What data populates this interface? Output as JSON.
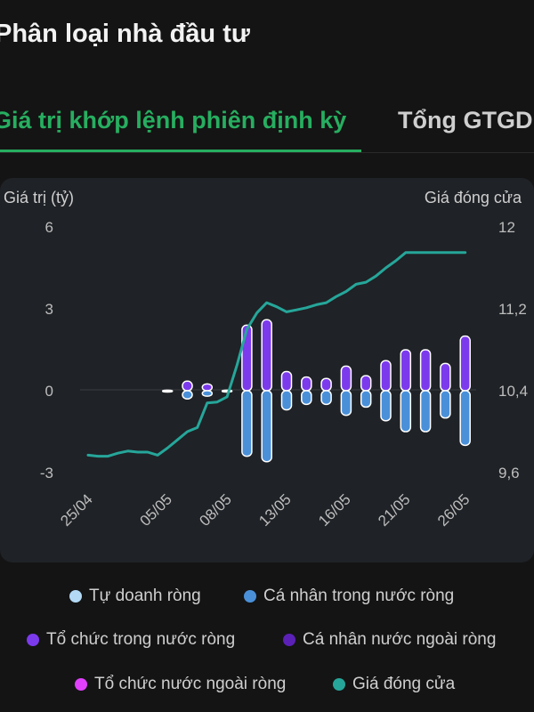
{
  "page": {
    "title": "Phân loại nhà đầu tư"
  },
  "tabs": [
    {
      "label": "Giá trị khớp lệnh phiên định kỳ",
      "active": true
    },
    {
      "label": "Tổng GTGD",
      "active": false
    }
  ],
  "colors": {
    "tab_active": "#27ae60",
    "tu_doanh": "#b3d9f5",
    "ca_nhan_trong_nuoc": "#4a90d9",
    "to_chuc_trong_nuoc": "#7c3aed",
    "ca_nhan_nuoc_ngoai": "#5b21b6",
    "to_chuc_nuoc_ngoai": "#e040fb",
    "gia_dong_cua": "#26a69a"
  },
  "chart_data": {
    "type": "bar",
    "left_axis_label": "Giá trị (tỷ)",
    "right_axis_label": "Giá đóng cửa",
    "left_ticks": [
      "6",
      "3",
      "0",
      "-3"
    ],
    "right_ticks": [
      "12",
      "11,2",
      "10,4",
      "9,6"
    ],
    "ylim_left": [
      -3,
      6
    ],
    "ylim_right": [
      9.6,
      12
    ],
    "x_tick_labels": [
      "25/04",
      "05/05",
      "08/05",
      "13/05",
      "16/05",
      "21/05",
      "26/05"
    ],
    "x_tick_index": [
      0,
      4,
      7,
      10,
      13,
      16,
      19
    ],
    "bars": [
      {
        "index": 4,
        "positive": 0.02,
        "negative": -0.02
      },
      {
        "index": 5,
        "positive": 0.35,
        "negative": -0.3
      },
      {
        "index": 6,
        "positive": 0.25,
        "negative": -0.2
      },
      {
        "index": 7,
        "positive": 0.02,
        "negative": -0.02
      },
      {
        "index": 8,
        "positive": 2.4,
        "negative": -2.4
      },
      {
        "index": 9,
        "positive": 2.6,
        "negative": -2.6
      },
      {
        "index": 10,
        "positive": 0.7,
        "negative": -0.7
      },
      {
        "index": 11,
        "positive": 0.5,
        "negative": -0.5
      },
      {
        "index": 12,
        "positive": 0.45,
        "negative": -0.5
      },
      {
        "index": 13,
        "positive": 0.9,
        "negative": -0.9
      },
      {
        "index": 14,
        "positive": 0.55,
        "negative": -0.6
      },
      {
        "index": 15,
        "positive": 1.1,
        "negative": -1.1
      },
      {
        "index": 16,
        "positive": 1.5,
        "negative": -1.5
      },
      {
        "index": 17,
        "positive": 1.5,
        "negative": -1.5
      },
      {
        "index": 18,
        "positive": 1.0,
        "negative": -1.0
      },
      {
        "index": 19,
        "positive": 2.0,
        "negative": -2.0
      }
    ],
    "price_line": {
      "name": "Giá đóng cửa",
      "points": [
        [
          0,
          9.77
        ],
        [
          0.5,
          9.76
        ],
        [
          1,
          9.76
        ],
        [
          1.5,
          9.79
        ],
        [
          2,
          9.81
        ],
        [
          2.5,
          9.8
        ],
        [
          3,
          9.8
        ],
        [
          3.5,
          9.77
        ],
        [
          4,
          9.84
        ],
        [
          4.5,
          9.92
        ],
        [
          5,
          10.0
        ],
        [
          5.5,
          10.04
        ],
        [
          6,
          10.28
        ],
        [
          6.5,
          10.29
        ],
        [
          7,
          10.34
        ],
        [
          7.5,
          10.65
        ],
        [
          8,
          11.0
        ],
        [
          8.5,
          11.16
        ],
        [
          9,
          11.26
        ],
        [
          9.5,
          11.22
        ],
        [
          10,
          11.17
        ],
        [
          10.5,
          11.19
        ],
        [
          11,
          11.21
        ],
        [
          11.5,
          11.24
        ],
        [
          12,
          11.26
        ],
        [
          12.5,
          11.32
        ],
        [
          13,
          11.37
        ],
        [
          13.5,
          11.44
        ],
        [
          14,
          11.46
        ],
        [
          14.5,
          11.52
        ],
        [
          15,
          11.6
        ],
        [
          15.5,
          11.67
        ],
        [
          16,
          11.75
        ],
        [
          16.5,
          11.75
        ],
        [
          17,
          11.75
        ],
        [
          17.5,
          11.75
        ],
        [
          18,
          11.75
        ],
        [
          18.5,
          11.75
        ],
        [
          19,
          11.75
        ]
      ]
    },
    "legend": [
      {
        "label": "Tự doanh ròng",
        "color": "#b3d9f5"
      },
      {
        "label": "Cá nhân trong nước ròng",
        "color": "#4a90d9"
      },
      {
        "label": "Tổ chức trong nước ròng",
        "color": "#7c3aed"
      },
      {
        "label": "Cá nhân nước ngoài ròng",
        "color": "#5b21b6"
      },
      {
        "label": "Tổ chức nước ngoài ròng",
        "color": "#e040fb"
      },
      {
        "label": "Giá đóng cửa",
        "color": "#26a69a"
      }
    ]
  }
}
